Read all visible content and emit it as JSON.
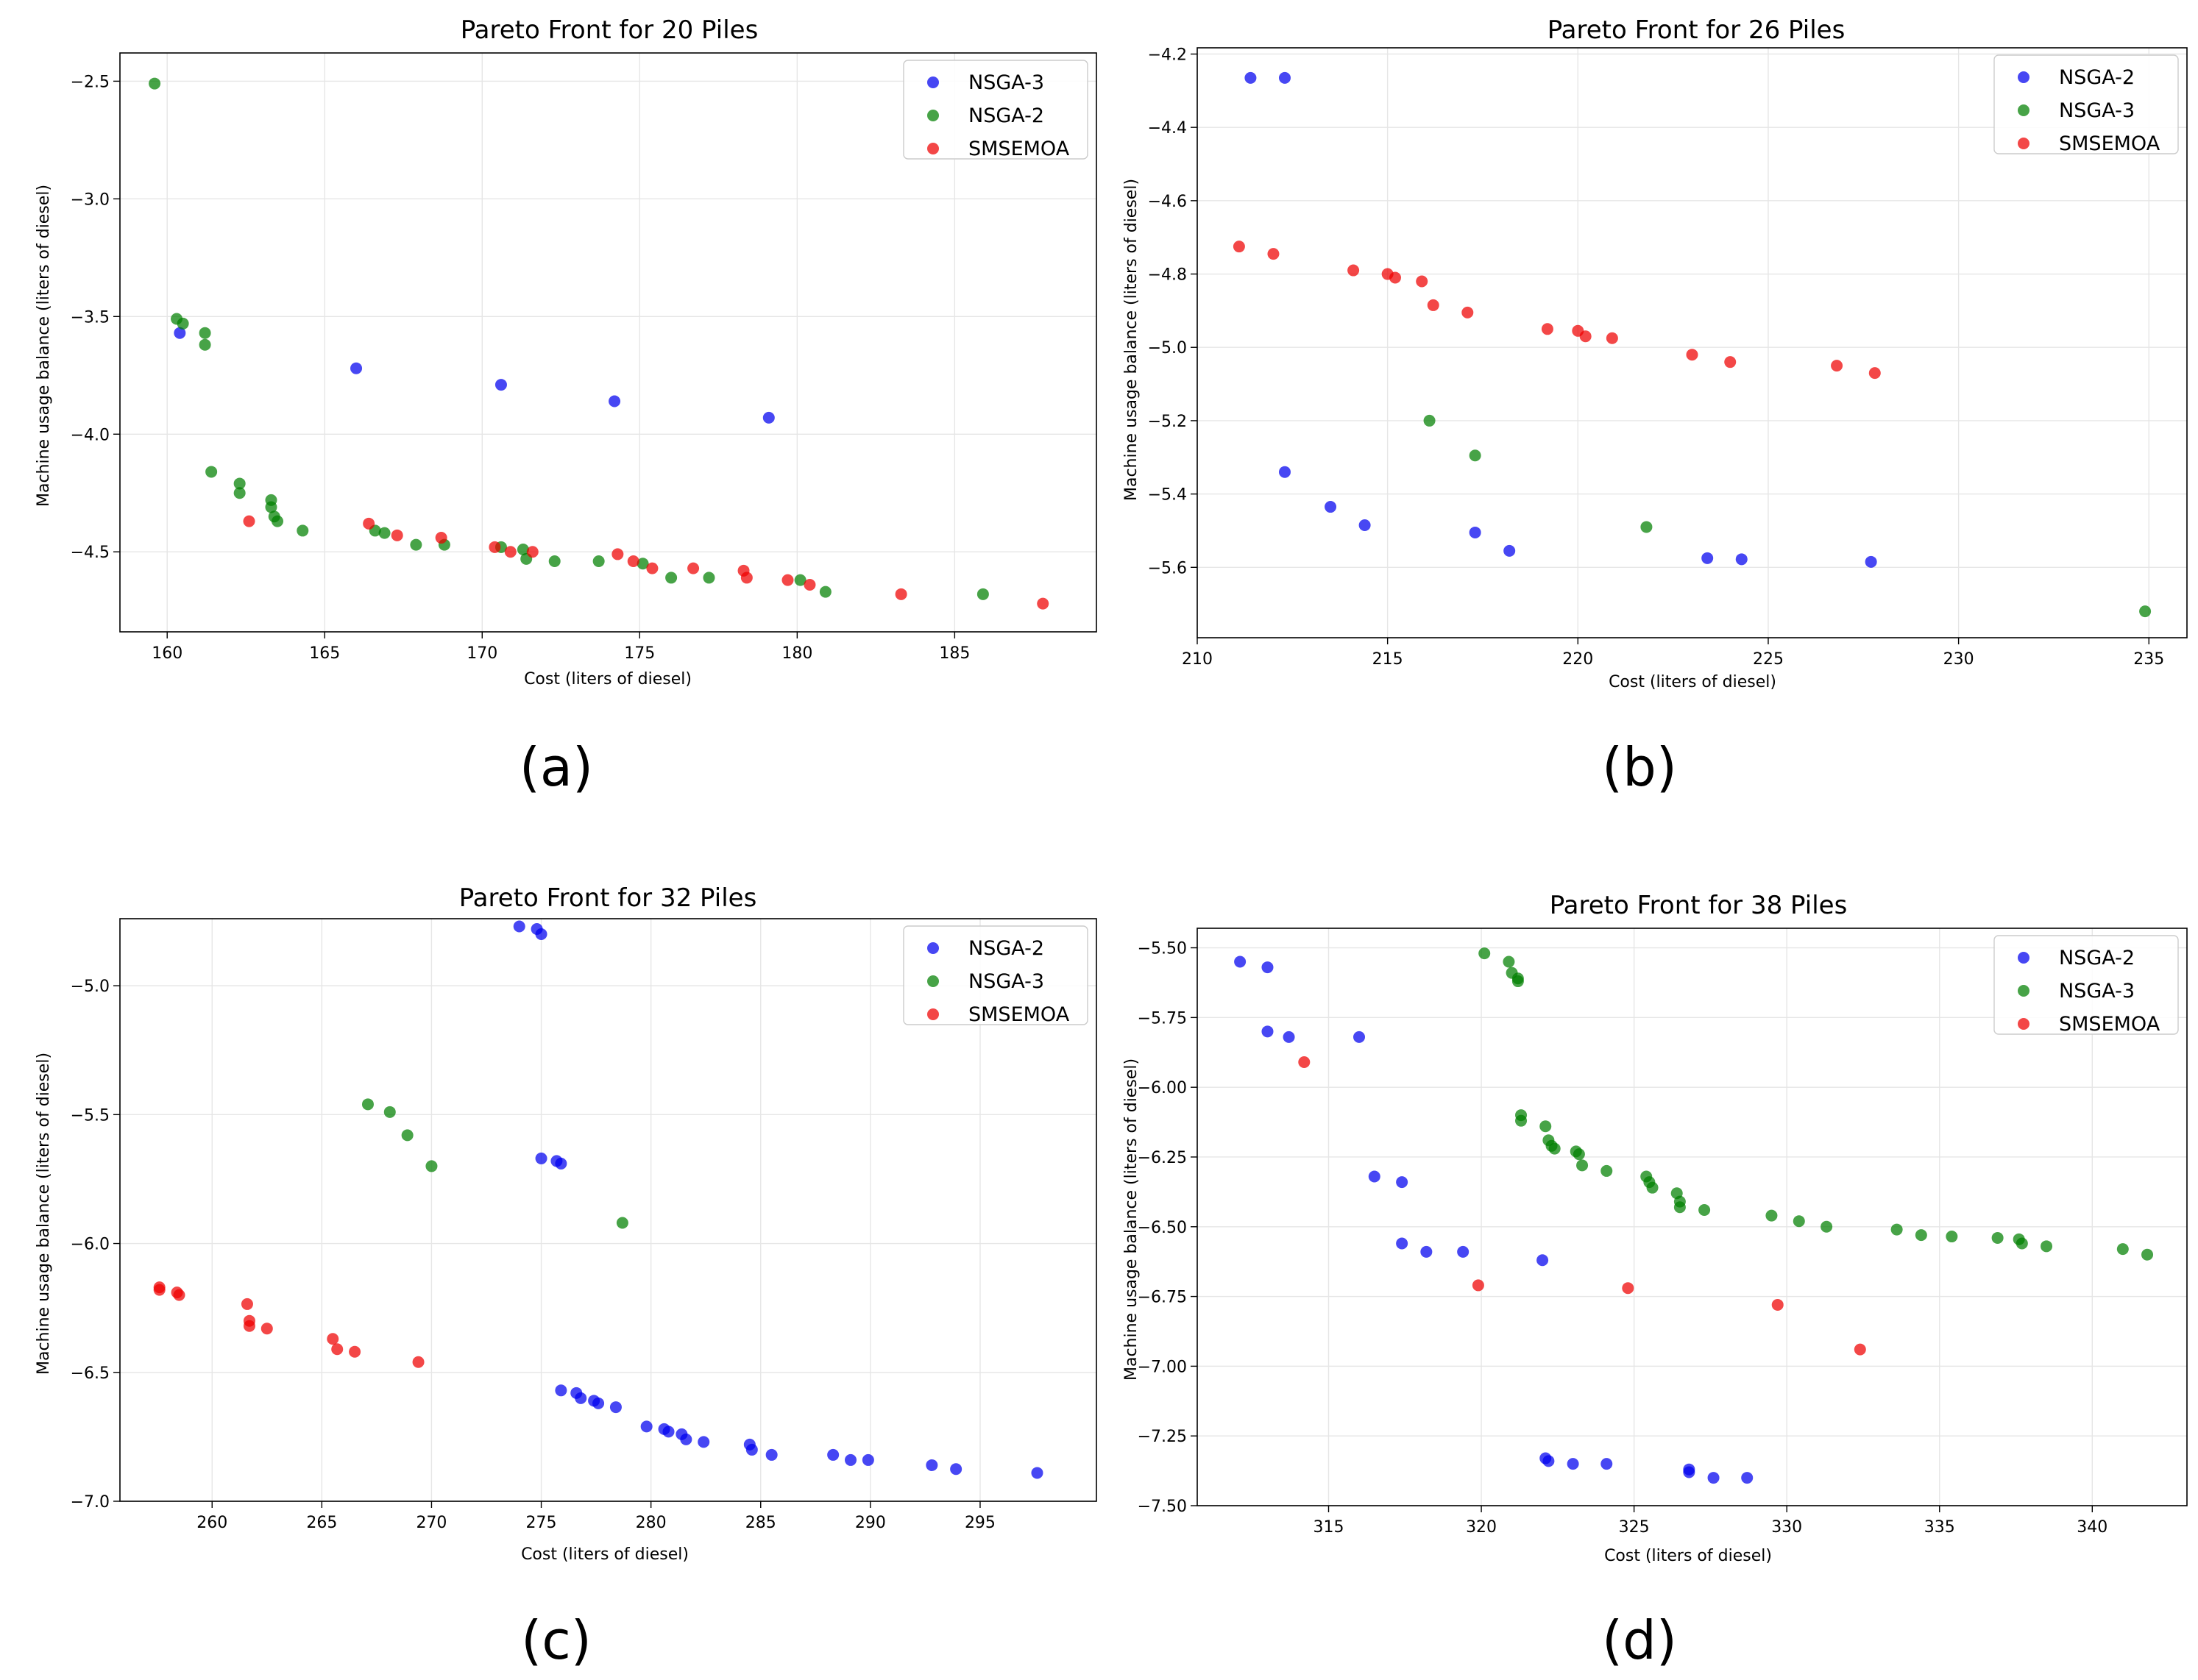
{
  "chart_data": [
    {
      "type": "scatter",
      "title": "Pareto Front for 20 Piles",
      "xlabel": "Cost (liters of diesel)",
      "ylabel": "Machine usage balance (liters of diesel)",
      "xlim": [
        158.5,
        189.5
      ],
      "ylim": [
        -4.84,
        -2.38
      ],
      "xticks": [
        160,
        165,
        170,
        175,
        180,
        185
      ],
      "yticks": [
        -4.5,
        -4.0,
        -3.5,
        -3.0,
        -2.5
      ],
      "xtick_labels": [
        "160",
        "165",
        "170",
        "175",
        "180",
        "185"
      ],
      "ytick_labels": [
        "−4.5",
        "−4.0",
        "−3.5",
        "−3.0",
        "−2.5"
      ],
      "legend_position": "top-right",
      "caption": "(a)",
      "series": [
        {
          "name": "NSGA-3",
          "color": "#0000ee",
          "points": [
            [
              160.4,
              -3.57
            ],
            [
              166.0,
              -3.72
            ],
            [
              170.6,
              -3.79
            ],
            [
              174.2,
              -3.86
            ],
            [
              179.1,
              -3.93
            ]
          ]
        },
        {
          "name": "NSGA-2",
          "color": "#008000",
          "points": [
            [
              159.6,
              -2.51
            ],
            [
              160.3,
              -3.51
            ],
            [
              160.5,
              -3.53
            ],
            [
              161.2,
              -3.57
            ],
            [
              161.2,
              -3.62
            ],
            [
              161.4,
              -4.16
            ],
            [
              162.3,
              -4.21
            ],
            [
              162.3,
              -4.25
            ],
            [
              163.3,
              -4.28
            ],
            [
              163.3,
              -4.31
            ],
            [
              163.4,
              -4.35
            ],
            [
              163.5,
              -4.37
            ],
            [
              164.3,
              -4.41
            ],
            [
              166.6,
              -4.41
            ],
            [
              166.9,
              -4.42
            ],
            [
              167.9,
              -4.47
            ],
            [
              168.8,
              -4.47
            ],
            [
              170.6,
              -4.48
            ],
            [
              171.3,
              -4.49
            ],
            [
              171.4,
              -4.53
            ],
            [
              172.3,
              -4.54
            ],
            [
              173.7,
              -4.54
            ],
            [
              175.1,
              -4.55
            ],
            [
              176.0,
              -4.61
            ],
            [
              177.2,
              -4.61
            ],
            [
              180.1,
              -4.62
            ],
            [
              180.9,
              -4.67
            ],
            [
              185.9,
              -4.68
            ]
          ]
        },
        {
          "name": "SMSEMOA",
          "color": "#ee0000",
          "points": [
            [
              162.6,
              -4.37
            ],
            [
              166.4,
              -4.38
            ],
            [
              167.3,
              -4.43
            ],
            [
              168.7,
              -4.44
            ],
            [
              170.4,
              -4.48
            ],
            [
              170.9,
              -4.5
            ],
            [
              171.6,
              -4.5
            ],
            [
              174.3,
              -4.51
            ],
            [
              174.8,
              -4.54
            ],
            [
              175.4,
              -4.57
            ],
            [
              176.7,
              -4.57
            ],
            [
              178.3,
              -4.58
            ],
            [
              178.4,
              -4.61
            ],
            [
              179.7,
              -4.62
            ],
            [
              180.4,
              -4.64
            ],
            [
              183.3,
              -4.68
            ],
            [
              187.8,
              -4.72
            ]
          ]
        }
      ]
    },
    {
      "type": "scatter",
      "title": "Pareto Front for 26 Piles",
      "xlabel": "Cost (liters of diesel)",
      "ylabel": "Machine usage balance (liters of diesel)",
      "xlim": [
        210.0,
        236.0
      ],
      "ylim": [
        -5.792,
        -4.183
      ],
      "xticks": [
        210,
        215,
        220,
        225,
        230,
        235
      ],
      "yticks": [
        -5.6,
        -5.4,
        -5.2,
        -5.0,
        -4.8,
        -4.6,
        -4.4,
        -4.2
      ],
      "xtick_labels": [
        "210",
        "215",
        "220",
        "225",
        "230",
        "235"
      ],
      "ytick_labels": [
        "−5.6",
        "−5.4",
        "−5.2",
        "−5.0",
        "−4.8",
        "−4.6",
        "−4.4",
        "−4.2"
      ],
      "legend_position": "top-right",
      "caption": "(b)",
      "series": [
        {
          "name": "NSGA-2",
          "color": "#0000ee",
          "points": [
            [
              211.4,
              -4.265
            ],
            [
              212.3,
              -4.265
            ],
            [
              212.3,
              -5.34
            ],
            [
              213.5,
              -5.435
            ],
            [
              214.4,
              -5.485
            ],
            [
              217.3,
              -5.505
            ],
            [
              218.2,
              -5.555
            ],
            [
              223.4,
              -5.575
            ],
            [
              224.3,
              -5.578
            ],
            [
              227.7,
              -5.585
            ]
          ]
        },
        {
          "name": "NSGA-3",
          "color": "#008000",
          "points": [
            [
              216.1,
              -5.2
            ],
            [
              217.3,
              -5.295
            ],
            [
              221.8,
              -5.49
            ],
            [
              234.9,
              -5.72
            ]
          ]
        },
        {
          "name": "SMSEMOA",
          "color": "#ee0000",
          "points": [
            [
              211.1,
              -4.725
            ],
            [
              212.0,
              -4.745
            ],
            [
              214.1,
              -4.79
            ],
            [
              215.0,
              -4.8
            ],
            [
              215.2,
              -4.81
            ],
            [
              215.9,
              -4.82
            ],
            [
              216.2,
              -4.885
            ],
            [
              217.1,
              -4.905
            ],
            [
              219.2,
              -4.95
            ],
            [
              220.0,
              -4.955
            ],
            [
              220.2,
              -4.97
            ],
            [
              220.9,
              -4.975
            ],
            [
              223.0,
              -5.02
            ],
            [
              224.0,
              -5.04
            ],
            [
              226.8,
              -5.05
            ],
            [
              227.8,
              -5.07
            ]
          ]
        }
      ]
    },
    {
      "type": "scatter",
      "title": "Pareto Front for 32 Piles",
      "xlabel": "Cost (liters of diesel)",
      "ylabel": "Machine usage balance (liters of diesel)",
      "xlim": [
        255.8,
        300.3
      ],
      "ylim": [
        -7.0,
        -4.74
      ],
      "xticks": [
        260,
        265,
        270,
        275,
        280,
        285,
        290,
        295
      ],
      "yticks": [
        -7.0,
        -6.5,
        -6.0,
        -5.5,
        -5.0
      ],
      "xtick_labels": [
        "260",
        "265",
        "270",
        "275",
        "280",
        "285",
        "290",
        "295"
      ],
      "ytick_labels": [
        "−7.0",
        "−6.5",
        "−6.0",
        "−5.5",
        "−5.0"
      ],
      "legend_position": "top-right",
      "caption": "(c)",
      "series": [
        {
          "name": "NSGA-2",
          "color": "#0000ee",
          "points": [
            [
              274.0,
              -4.77
            ],
            [
              274.8,
              -4.78
            ],
            [
              275.0,
              -4.8
            ],
            [
              275.0,
              -5.67
            ],
            [
              275.7,
              -5.68
            ],
            [
              275.9,
              -5.69
            ],
            [
              275.9,
              -6.57
            ],
            [
              276.6,
              -6.58
            ],
            [
              276.8,
              -6.6
            ],
            [
              277.4,
              -6.61
            ],
            [
              277.6,
              -6.62
            ],
            [
              278.4,
              -6.635
            ],
            [
              279.8,
              -6.71
            ],
            [
              280.6,
              -6.72
            ],
            [
              280.8,
              -6.73
            ],
            [
              281.4,
              -6.74
            ],
            [
              281.6,
              -6.76
            ],
            [
              282.4,
              -6.77
            ],
            [
              284.5,
              -6.78
            ],
            [
              284.6,
              -6.8
            ],
            [
              285.5,
              -6.82
            ],
            [
              288.3,
              -6.82
            ],
            [
              289.1,
              -6.84
            ],
            [
              289.9,
              -6.84
            ],
            [
              292.8,
              -6.86
            ],
            [
              293.9,
              -6.875
            ],
            [
              297.6,
              -6.89
            ]
          ]
        },
        {
          "name": "NSGA-3",
          "color": "#008000",
          "points": [
            [
              267.1,
              -5.46
            ],
            [
              268.1,
              -5.49
            ],
            [
              268.9,
              -5.58
            ],
            [
              270.0,
              -5.7
            ],
            [
              278.7,
              -5.92
            ]
          ]
        },
        {
          "name": "SMSEMOA",
          "color": "#ee0000",
          "points": [
            [
              257.6,
              -6.17
            ],
            [
              257.6,
              -6.18
            ],
            [
              258.4,
              -6.19
            ],
            [
              258.5,
              -6.2
            ],
            [
              261.6,
              -6.235
            ],
            [
              261.7,
              -6.3
            ],
            [
              261.7,
              -6.32
            ],
            [
              262.5,
              -6.33
            ],
            [
              265.5,
              -6.37
            ],
            [
              265.7,
              -6.41
            ],
            [
              266.5,
              -6.42
            ],
            [
              269.4,
              -6.46
            ]
          ]
        }
      ]
    },
    {
      "type": "scatter",
      "title": "Pareto Front for 38 Piles",
      "xlabel": "Cost (liters of diesel)",
      "ylabel": "Machine usage balance (liters of diesel)",
      "xlim": [
        310.7,
        343.1
      ],
      "ylim": [
        -7.5,
        -5.43
      ],
      "xticks": [
        315,
        320,
        325,
        330,
        335,
        340
      ],
      "yticks": [
        -7.5,
        -7.25,
        -7.0,
        -6.75,
        -6.5,
        -6.25,
        -6.0,
        -5.75,
        -5.5
      ],
      "xtick_labels": [
        "315",
        "320",
        "325",
        "330",
        "335",
        "340"
      ],
      "ytick_labels": [
        "−7.50",
        "−7.25",
        "−7.00",
        "−6.75",
        "−6.50",
        "−6.25",
        "−6.00",
        "−5.75",
        "−5.50"
      ],
      "legend_position": "top-right",
      "caption": "(d)",
      "series": [
        {
          "name": "NSGA-2",
          "color": "#0000ee",
          "points": [
            [
              312.1,
              -5.55
            ],
            [
              313.0,
              -5.57
            ],
            [
              313.0,
              -5.8
            ],
            [
              313.7,
              -5.82
            ],
            [
              316.0,
              -5.82
            ],
            [
              316.5,
              -6.32
            ],
            [
              317.4,
              -6.34
            ],
            [
              317.4,
              -6.56
            ],
            [
              318.2,
              -6.59
            ],
            [
              319.4,
              -6.59
            ],
            [
              322.0,
              -6.62
            ],
            [
              322.1,
              -7.33
            ],
            [
              322.2,
              -7.34
            ],
            [
              323.0,
              -7.35
            ],
            [
              324.1,
              -7.35
            ],
            [
              326.8,
              -7.37
            ],
            [
              326.8,
              -7.38
            ],
            [
              327.6,
              -7.4
            ],
            [
              328.7,
              -7.4
            ]
          ]
        },
        {
          "name": "NSGA-3",
          "color": "#008000",
          "points": [
            [
              320.1,
              -5.52
            ],
            [
              320.9,
              -5.55
            ],
            [
              321.0,
              -5.59
            ],
            [
              321.2,
              -5.61
            ],
            [
              321.2,
              -5.62
            ],
            [
              321.3,
              -6.1
            ],
            [
              321.3,
              -6.12
            ],
            [
              322.1,
              -6.14
            ],
            [
              322.2,
              -6.19
            ],
            [
              322.3,
              -6.21
            ],
            [
              322.4,
              -6.22
            ],
            [
              323.1,
              -6.23
            ],
            [
              323.2,
              -6.24
            ],
            [
              323.3,
              -6.28
            ],
            [
              324.1,
              -6.3
            ],
            [
              325.4,
              -6.32
            ],
            [
              325.5,
              -6.34
            ],
            [
              325.6,
              -6.36
            ],
            [
              326.4,
              -6.38
            ],
            [
              326.5,
              -6.41
            ],
            [
              326.5,
              -6.43
            ],
            [
              327.3,
              -6.44
            ],
            [
              329.5,
              -6.46
            ],
            [
              330.4,
              -6.48
            ],
            [
              331.3,
              -6.5
            ],
            [
              333.6,
              -6.51
            ],
            [
              334.4,
              -6.53
            ],
            [
              335.4,
              -6.535
            ],
            [
              336.9,
              -6.54
            ],
            [
              337.6,
              -6.545
            ],
            [
              337.7,
              -6.56
            ],
            [
              338.5,
              -6.57
            ],
            [
              341.0,
              -6.58
            ],
            [
              341.8,
              -6.6
            ]
          ]
        },
        {
          "name": "SMSEMOA",
          "color": "#ee0000",
          "points": [
            [
              314.2,
              -5.91
            ],
            [
              319.9,
              -6.71
            ],
            [
              324.8,
              -6.72
            ],
            [
              329.7,
              -6.78
            ],
            [
              332.4,
              -6.94
            ]
          ]
        }
      ]
    }
  ]
}
